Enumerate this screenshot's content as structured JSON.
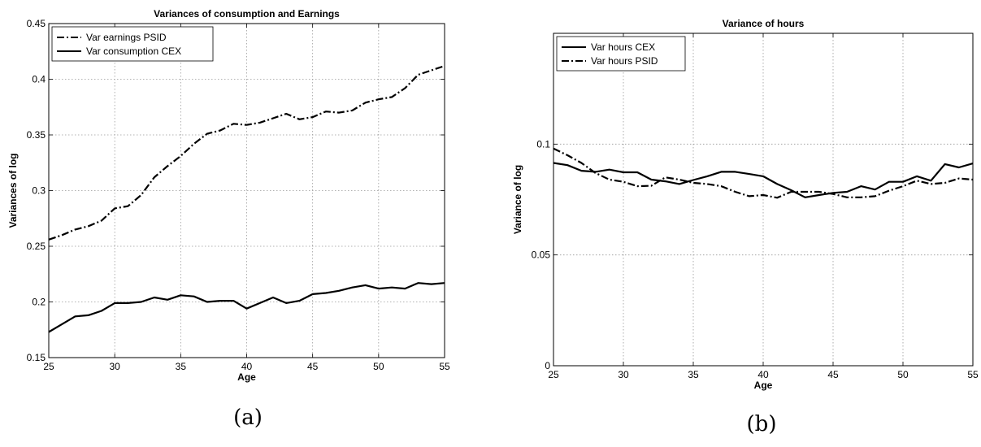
{
  "chart_data": [
    {
      "type": "line",
      "panel_label": "(a)",
      "title": "Variances of consumption and Earnings",
      "xlabel": "Age",
      "ylabel": "Variances of log",
      "xlim": [
        25,
        55
      ],
      "ylim": [
        0.15,
        0.45
      ],
      "xticks": [
        "25",
        "30",
        "35",
        "40",
        "45",
        "50",
        "55"
      ],
      "yticks": [
        "0.15",
        "0.2",
        "0.25",
        "0.3",
        "0.35",
        "0.4",
        "0.45"
      ],
      "grid": true,
      "legend_position": "top-left",
      "x": [
        25,
        26,
        27,
        28,
        29,
        30,
        31,
        32,
        33,
        34,
        35,
        36,
        37,
        38,
        39,
        40,
        41,
        42,
        43,
        44,
        45,
        46,
        47,
        48,
        49,
        50,
        51,
        52,
        53,
        54,
        55
      ],
      "series": [
        {
          "name": "Var earnings PSID",
          "style": "dashdot",
          "values": [
            0.256,
            0.26,
            0.265,
            0.268,
            0.273,
            0.284,
            0.286,
            0.296,
            0.312,
            0.322,
            0.331,
            0.342,
            0.351,
            0.354,
            0.36,
            0.359,
            0.361,
            0.365,
            0.369,
            0.364,
            0.366,
            0.371,
            0.37,
            0.372,
            0.379,
            0.382,
            0.384,
            0.392,
            0.404,
            0.408,
            0.412
          ]
        },
        {
          "name": "Var consumption CEX",
          "style": "solid",
          "values": [
            0.173,
            0.18,
            0.187,
            0.188,
            0.192,
            0.199,
            0.199,
            0.2,
            0.204,
            0.202,
            0.206,
            0.205,
            0.2,
            0.201,
            0.201,
            0.194,
            0.199,
            0.204,
            0.199,
            0.201,
            0.207,
            0.208,
            0.21,
            0.213,
            0.215,
            0.212,
            0.213,
            0.212,
            0.217,
            0.216,
            0.217
          ]
        }
      ]
    },
    {
      "type": "line",
      "panel_label": "(b)",
      "title": "Variance of hours",
      "xlabel": "Age",
      "ylabel": "Variance of log",
      "xlim": [
        25,
        55
      ],
      "ylim": [
        0,
        0.15
      ],
      "xticks": [
        "25",
        "30",
        "35",
        "40",
        "45",
        "50",
        "55"
      ],
      "yticks": [
        "0",
        "0.05",
        "0.1"
      ],
      "ytick_values": [
        0,
        0.05,
        0.1
      ],
      "grid": true,
      "legend_position": "top-left",
      "x": [
        25,
        26,
        27,
        28,
        29,
        30,
        31,
        32,
        33,
        34,
        35,
        36,
        37,
        38,
        39,
        40,
        41,
        42,
        43,
        44,
        45,
        46,
        47,
        48,
        49,
        50,
        51,
        52,
        53,
        54,
        55
      ],
      "series": [
        {
          "name": "Var hours CEX",
          "style": "solid",
          "values": [
            0.0915,
            0.0905,
            0.088,
            0.0875,
            0.0885,
            0.0873,
            0.0873,
            0.084,
            0.0832,
            0.082,
            0.0838,
            0.0855,
            0.0875,
            0.0875,
            0.0865,
            0.0855,
            0.082,
            0.0792,
            0.076,
            0.077,
            0.078,
            0.0785,
            0.081,
            0.0795,
            0.083,
            0.083,
            0.0855,
            0.0835,
            0.091,
            0.0895,
            0.0913
          ]
        },
        {
          "name": "Var hours PSID",
          "style": "dashdot",
          "values": [
            0.098,
            0.095,
            0.0915,
            0.087,
            0.084,
            0.083,
            0.081,
            0.0812,
            0.085,
            0.084,
            0.0825,
            0.082,
            0.081,
            0.0785,
            0.0765,
            0.077,
            0.0758,
            0.0785,
            0.0785,
            0.0785,
            0.0775,
            0.076,
            0.076,
            0.0765,
            0.079,
            0.081,
            0.0835,
            0.082,
            0.0825,
            0.0845,
            0.084
          ]
        }
      ]
    }
  ]
}
